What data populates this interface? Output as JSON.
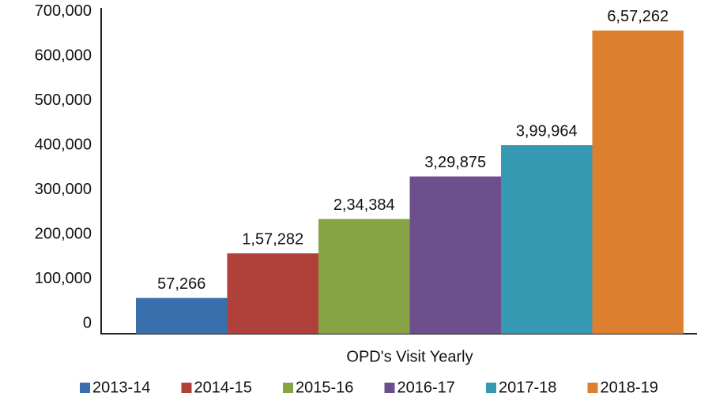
{
  "chart_data": {
    "type": "bar",
    "categories": [
      "OPD's Visit Yearly"
    ],
    "series": [
      {
        "name": "2013-14",
        "color": "#3a6fad",
        "values": [
          57266
        ],
        "value_labels": [
          "57,266"
        ]
      },
      {
        "name": "2014-15",
        "color": "#b0403a",
        "values": [
          157282
        ],
        "value_labels": [
          "1,57,282"
        ]
      },
      {
        "name": "2015-16",
        "color": "#86a444",
        "values": [
          234384
        ],
        "value_labels": [
          "2,34,384"
        ]
      },
      {
        "name": "2016-17",
        "color": "#6d4f8e",
        "values": [
          329875
        ],
        "value_labels": [
          "3,29,875"
        ]
      },
      {
        "name": "2017-18",
        "color": "#3599b1",
        "values": [
          399964
        ],
        "value_labels": [
          "3,99,964"
        ]
      },
      {
        "name": "2018-19",
        "color": "#dc7f2e",
        "values": [
          657262
        ],
        "value_labels": [
          "6,57,262"
        ]
      }
    ],
    "ylim": [
      0,
      700000
    ],
    "yticks": [
      0,
      {
        "value": 100000,
        "label": "100,000"
      },
      {
        "value": 200000,
        "label": "200,000"
      },
      {
        "value": 300000,
        "label": "300,000"
      },
      {
        "value": 400000,
        "label": "400,000"
      },
      {
        "value": 500000,
        "label": "500,000"
      },
      {
        "value": 600000,
        "label": "600,000"
      },
      {
        "value": 700000,
        "label": "700,000"
      }
    ],
    "grid": false,
    "legend": "bottom"
  }
}
